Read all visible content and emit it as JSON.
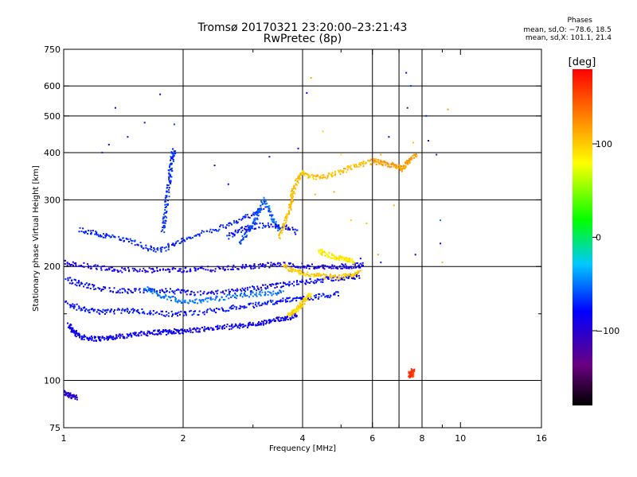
{
  "title_line1": "Tromsø 20170321 23:20:00–23:21:43",
  "title_line2": "RwPretec (8p)",
  "stats": {
    "heading": "Phases",
    "o_line": "mean, sd,O: −78.6, 18.5",
    "x_line": "mean, sd,X: 101.1, 21.4"
  },
  "chart_data": {
    "type": "scatter",
    "xlabel": "Frequency [MHz]",
    "ylabel": "Stationary phase Virtual Height [km]",
    "xscale": "log",
    "yscale": "log",
    "xlim": [
      1,
      16
    ],
    "ylim": [
      75,
      750
    ],
    "x_ticks": [
      1,
      2,
      4,
      6,
      8,
      10,
      16
    ],
    "x_ticklabels": [
      "1",
      "2",
      "4",
      "6",
      "8",
      "10",
      "16"
    ],
    "x_minor_ticks": [
      3,
      5,
      7,
      9
    ],
    "x_grid": [
      2,
      4,
      6,
      7,
      8
    ],
    "y_ticks": [
      75,
      100,
      200,
      300,
      400,
      500,
      600,
      750
    ],
    "y_ticklabels": [
      "75",
      "100",
      "200",
      "300",
      "400",
      "500",
      "600",
      "750"
    ],
    "y_minor_ticks": [
      150
    ],
    "y_grid": [
      100,
      200,
      300,
      400,
      500,
      600
    ],
    "grid": true,
    "colorbar": {
      "label": "[deg]",
      "range": [
        -180,
        180
      ],
      "ticks": [
        100,
        0,
        -100
      ],
      "ticklabels": [
        "100",
        "0",
        "−100"
      ],
      "colormap": "rainbow (black–purple–blue–cyan–green–yellow–red)"
    },
    "traces": [
      {
        "name": "",
        "phase": -105,
        "spread": 10,
        "points": [
          [
            1.03,
            140
          ],
          [
            1.05,
            136
          ],
          [
            1.08,
            132
          ],
          [
            1.12,
            130
          ],
          [
            1.18,
            129
          ],
          [
            1.25,
            129
          ],
          [
            1.32,
            130
          ],
          [
            1.4,
            131
          ],
          [
            1.5,
            132
          ],
          [
            1.6,
            133
          ],
          [
            1.7,
            134
          ],
          [
            1.8,
            134
          ],
          [
            1.9,
            135
          ],
          [
            2.0,
            135
          ],
          [
            2.15,
            136
          ],
          [
            2.3,
            137
          ],
          [
            2.5,
            138
          ],
          [
            2.7,
            139
          ],
          [
            2.9,
            140
          ],
          [
            3.1,
            141
          ],
          [
            3.3,
            143
          ],
          [
            3.5,
            145
          ],
          [
            3.7,
            147
          ],
          [
            3.9,
            150
          ]
        ]
      },
      {
        "name": "",
        "phase": -95,
        "spread": 12,
        "points": [
          [
            1.02,
            160
          ],
          [
            1.1,
            155
          ],
          [
            1.2,
            152
          ],
          [
            1.3,
            152
          ],
          [
            1.45,
            153
          ],
          [
            1.6,
            152
          ],
          [
            1.8,
            150
          ],
          [
            2.0,
            150
          ],
          [
            2.3,
            152
          ],
          [
            2.6,
            155
          ],
          [
            2.9,
            157
          ],
          [
            3.2,
            160
          ],
          [
            3.5,
            162
          ],
          [
            3.8,
            164
          ],
          [
            4.1,
            165
          ],
          [
            4.5,
            167
          ],
          [
            5.0,
            170
          ]
        ]
      },
      {
        "name": "",
        "phase": -100,
        "spread": 12,
        "points": [
          [
            1.02,
            185
          ],
          [
            1.1,
            180
          ],
          [
            1.2,
            176
          ],
          [
            1.35,
            173
          ],
          [
            1.5,
            172
          ],
          [
            1.7,
            173
          ],
          [
            1.9,
            172
          ],
          [
            2.1,
            170
          ],
          [
            2.4,
            170
          ],
          [
            2.7,
            172
          ],
          [
            3.0,
            175
          ],
          [
            3.3,
            177
          ],
          [
            3.6,
            179
          ],
          [
            4.0,
            182
          ],
          [
            4.4,
            184
          ],
          [
            4.8,
            186
          ],
          [
            5.2,
            187
          ],
          [
            5.6,
            188
          ]
        ]
      },
      {
        "name": "",
        "phase": -110,
        "spread": 10,
        "points": [
          [
            1.0,
            205
          ],
          [
            1.1,
            202
          ],
          [
            1.25,
            198
          ],
          [
            1.4,
            196
          ],
          [
            1.6,
            195
          ],
          [
            1.8,
            196
          ],
          [
            2.0,
            196
          ],
          [
            2.2,
            197
          ],
          [
            2.5,
            197
          ],
          [
            2.8,
            199
          ],
          [
            3.1,
            201
          ],
          [
            3.4,
            202
          ],
          [
            3.8,
            202
          ],
          [
            4.2,
            200
          ],
          [
            4.6,
            199
          ],
          [
            5.0,
            200
          ],
          [
            5.4,
            201
          ],
          [
            5.7,
            202
          ]
        ]
      },
      {
        "name": "",
        "phase": -60,
        "spread": 14,
        "points": [
          [
            1.6,
            175
          ],
          [
            1.7,
            170
          ],
          [
            1.85,
            165
          ],
          [
            2.0,
            162
          ],
          [
            2.2,
            162
          ],
          [
            2.4,
            164
          ],
          [
            2.7,
            167
          ],
          [
            3.0,
            169
          ],
          [
            3.3,
            170
          ],
          [
            3.6,
            171
          ]
        ]
      },
      {
        "name": "",
        "phase": -120,
        "spread": 8,
        "points": [
          [
            1.0,
            93
          ],
          [
            1.02,
            92
          ],
          [
            1.05,
            91
          ],
          [
            1.08,
            90
          ]
        ]
      },
      {
        "name": "",
        "phase": -90,
        "spread": 15,
        "points": [
          [
            1.1,
            250
          ],
          [
            1.2,
            245
          ],
          [
            1.3,
            240
          ],
          [
            1.45,
            235
          ],
          [
            1.6,
            225
          ],
          [
            1.75,
            220
          ],
          [
            1.9,
            230
          ],
          [
            2.1,
            240
          ],
          [
            2.4,
            250
          ],
          [
            2.7,
            262
          ],
          [
            3.0,
            275
          ],
          [
            3.2,
            285
          ]
        ]
      },
      {
        "name": "",
        "phase": -85,
        "spread": 14,
        "points": [
          [
            1.78,
            250
          ],
          [
            1.8,
            270
          ],
          [
            1.82,
            300
          ],
          [
            1.84,
            330
          ],
          [
            1.86,
            360
          ],
          [
            1.88,
            390
          ],
          [
            1.9,
            410
          ]
        ]
      },
      {
        "name": "",
        "phase": -70,
        "spread": 15,
        "points": [
          [
            2.8,
            230
          ],
          [
            2.9,
            245
          ],
          [
            3.0,
            260
          ],
          [
            3.1,
            280
          ],
          [
            3.2,
            300
          ],
          [
            3.3,
            280
          ],
          [
            3.4,
            260
          ],
          [
            3.5,
            250
          ]
        ]
      },
      {
        "name": "",
        "phase": -95,
        "spread": 20,
        "points": [
          [
            2.6,
            240
          ],
          [
            2.8,
            250
          ],
          [
            3.0,
            255
          ],
          [
            3.3,
            258
          ],
          [
            3.6,
            255
          ],
          [
            3.9,
            245
          ]
        ]
      },
      {
        "name": "",
        "phase": 95,
        "spread": 15,
        "points": [
          [
            3.6,
            200
          ],
          [
            3.8,
            195
          ],
          [
            4.0,
            192
          ],
          [
            4.3,
            190
          ],
          [
            4.6,
            188
          ],
          [
            5.0,
            188
          ],
          [
            5.3,
            190
          ],
          [
            5.6,
            195
          ]
        ]
      },
      {
        "name": "",
        "phase": 90,
        "spread": 15,
        "points": [
          [
            3.7,
            150
          ],
          [
            3.8,
            152
          ],
          [
            3.9,
            155
          ],
          [
            4.0,
            160
          ],
          [
            4.1,
            165
          ],
          [
            4.2,
            170
          ]
        ]
      },
      {
        "name": "",
        "phase": 100,
        "spread": 15,
        "points": [
          [
            3.5,
            240
          ],
          [
            3.6,
            260
          ],
          [
            3.7,
            280
          ],
          [
            3.75,
            300
          ],
          [
            3.8,
            320
          ],
          [
            3.9,
            340
          ],
          [
            4.0,
            355
          ],
          [
            4.2,
            345
          ],
          [
            4.5,
            345
          ],
          [
            4.8,
            350
          ],
          [
            5.2,
            362
          ],
          [
            5.6,
            372
          ],
          [
            6.0,
            378
          ]
        ]
      },
      {
        "name": "",
        "phase": 115,
        "spread": 12,
        "points": [
          [
            6.0,
            380
          ],
          [
            6.3,
            376
          ],
          [
            6.6,
            372
          ],
          [
            6.9,
            368
          ],
          [
            7.1,
            362
          ],
          [
            7.3,
            372
          ],
          [
            7.5,
            385
          ],
          [
            7.8,
            400
          ]
        ]
      },
      {
        "name": "",
        "phase": 80,
        "spread": 15,
        "points": [
          [
            4.4,
            220
          ],
          [
            4.6,
            215
          ],
          [
            4.8,
            212
          ],
          [
            5.0,
            210
          ],
          [
            5.2,
            208
          ],
          [
            5.4,
            206
          ]
        ]
      },
      {
        "name": "",
        "phase": 160,
        "spread": 10,
        "points": [
          [
            7.45,
            104
          ],
          [
            7.5,
            103
          ],
          [
            7.55,
            104
          ],
          [
            7.6,
            106
          ]
        ]
      }
    ],
    "scattered_points": [
      [
        1.35,
        525,
        -110
      ],
      [
        1.6,
        480,
        -90
      ],
      [
        1.75,
        570,
        -100
      ],
      [
        1.9,
        475,
        -80
      ],
      [
        4.1,
        575,
        -100
      ],
      [
        4.2,
        630,
        110
      ],
      [
        4.5,
        455,
        90
      ],
      [
        7.3,
        650,
        -120
      ],
      [
        7.35,
        525,
        -140
      ],
      [
        7.5,
        600,
        -80
      ],
      [
        8.2,
        500,
        -90
      ],
      [
        9.3,
        520,
        120
      ],
      [
        8.3,
        430,
        -120
      ],
      [
        8.7,
        395,
        -130
      ],
      [
        6.6,
        440,
        -100
      ],
      [
        6.3,
        395,
        110
      ],
      [
        7.6,
        425,
        100
      ],
      [
        5.0,
        395,
        80
      ],
      [
        4.8,
        315,
        110
      ],
      [
        5.6,
        210,
        -110
      ],
      [
        6.3,
        205,
        -90
      ],
      [
        7.7,
        215,
        -100
      ],
      [
        8.9,
        265,
        -60
      ],
      [
        8.9,
        230,
        -100
      ],
      [
        9.0,
        205,
        100
      ],
      [
        5.8,
        260,
        100
      ],
      [
        4.3,
        310,
        105
      ],
      [
        3.9,
        410,
        -100
      ],
      [
        1.3,
        420,
        -100
      ],
      [
        1.45,
        440,
        -110
      ],
      [
        1.25,
        400,
        -90
      ],
      [
        2.4,
        370,
        -110
      ],
      [
        3.3,
        390,
        -90
      ],
      [
        2.6,
        330,
        -100
      ],
      [
        5.3,
        265,
        95
      ],
      [
        6.2,
        215,
        115
      ],
      [
        6.8,
        290,
        105
      ]
    ]
  }
}
